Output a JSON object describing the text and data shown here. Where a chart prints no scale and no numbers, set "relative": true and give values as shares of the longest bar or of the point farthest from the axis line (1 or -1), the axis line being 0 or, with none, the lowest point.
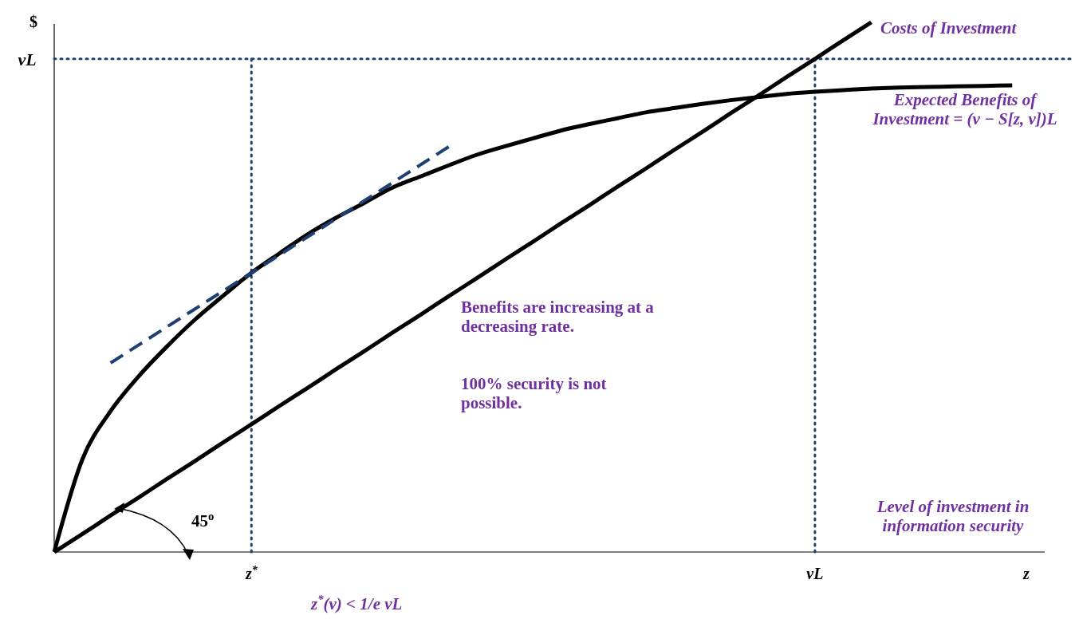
{
  "chart_data": {
    "type": "line",
    "relative": true,
    "ylabel": "$",
    "xlabel": "z",
    "categories": [
      null,
      null,
      null,
      null,
      null,
      null,
      null,
      "z$^{*}$",
      null,
      null,
      null,
      null,
      null,
      null,
      null,
      null,
      null,
      null,
      null,
      null,
      null,
      null,
      null,
      null,
      null,
      null,
      null,
      "vL",
      null,
      null,
      null,
      null,
      null,
      null,
      null,
      null
    ],
    "series": [
      {
        "name": "Costs of Investment",
        "color": "#000000",
        "values": [
          0,
          0.034,
          0.069,
          0.103,
          0.138,
          0.172,
          0.207,
          0.241,
          0.276,
          0.31,
          0.345,
          0.379,
          0.414,
          0.448,
          0.483,
          0.517,
          0.552,
          0.586,
          0.621,
          0.655,
          0.69,
          0.724,
          0.759,
          0.793,
          0.828,
          0.862,
          0.897,
          0.931,
          0.966,
          1,
          null,
          null,
          null,
          null,
          null,
          null
        ]
      },
      {
        "name": "Expected Benefits of Investment = (v − S[z, v])L",
        "color": "#000000",
        "values": [
          0,
          0.175,
          0.266,
          0.332,
          0.388,
          0.439,
          0.484,
          0.527,
          0.564,
          0.6,
          0.631,
          0.659,
          0.688,
          0.709,
          0.73,
          0.75,
          0.766,
          0.781,
          0.796,
          0.808,
          0.819,
          0.83,
          0.838,
          0.846,
          0.853,
          0.859,
          0.865,
          0.869,
          0.872,
          0.875,
          0.877,
          0.878,
          0.879,
          0.88,
          0.881,
          null
        ]
      },
      {
        "color": "#1f3f73",
        "line_style": "dashed",
        "values": [
          null,
          null,
          0.357,
          0.391,
          0.425,
          0.459,
          0.493,
          0.527,
          0.561,
          0.595,
          0.629,
          0.663,
          0.697,
          0.731,
          0.765,
          null,
          null,
          null,
          null,
          null,
          null,
          null,
          null,
          null,
          null,
          null,
          null,
          null,
          null,
          null,
          null,
          null,
          null,
          null,
          null,
          null
        ]
      }
    ],
    "ref_lines": [
      {
        "axis": "y",
        "value": 0.931,
        "label": "vL",
        "color": "#1f3f73",
        "line_style": "dotted"
      },
      {
        "axis": "x",
        "value": "z$^{*}$",
        "color": "#1f3f73",
        "line_style": "dotted"
      },
      {
        "axis": "x",
        "value": "vL",
        "color": "#1f3f73",
        "line_style": "dotted"
      }
    ],
    "annotations": [
      "Benefits are increasing at a decreasing rate.",
      "100% security is not possible.",
      "Level of investment in information security",
      "45$^{o}$",
      "z$^{*}$(v) < 1/e vL"
    ]
  }
}
